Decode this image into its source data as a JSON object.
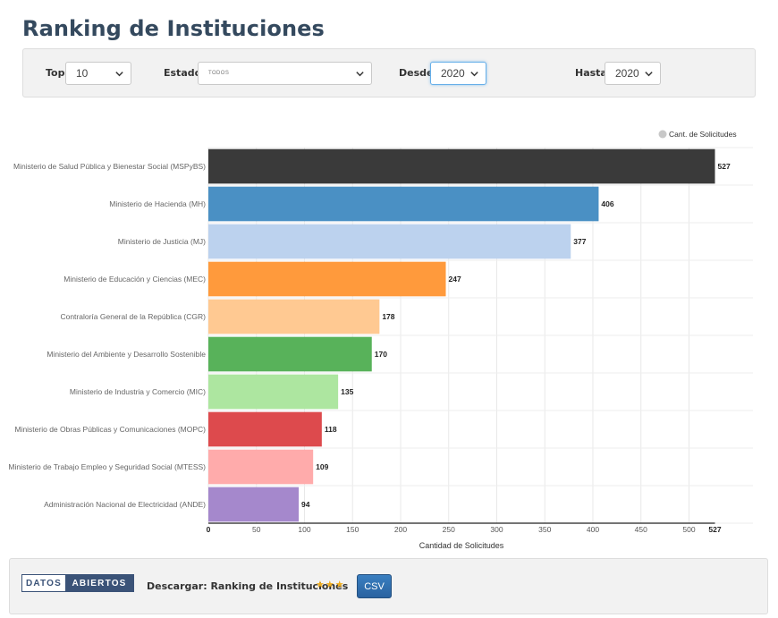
{
  "page": {
    "title": "Ranking de Instituciones"
  },
  "filters": {
    "top_label": "Top",
    "top_value": "10",
    "estado_label": "Estado",
    "estado_value": "TODOS",
    "desde_label": "Desde",
    "desde_value": "2020",
    "hasta_label": "Hasta",
    "hasta_value": "2020"
  },
  "chart_data": {
    "type": "bar",
    "orientation": "horizontal",
    "categories": [
      "Ministerio de Salud Pública y Bienestar Social (MSPyBS)",
      "Ministerio de Hacienda (MH)",
      "Ministerio de Justicia (MJ)",
      "Ministerio de Educación y Ciencias (MEC)",
      "Contraloría General de la República (CGR)",
      "Ministerio del Ambiente y Desarrollo Sostenible",
      "Ministerio de Industria y Comercio (MIC)",
      "Ministerio de Obras Públicas y Comunicaciones (MOPC)",
      "Ministerio de Trabajo Empleo y Seguridad Social (MTESS)",
      "Administración Nacional de Electricidad (ANDE)"
    ],
    "series": [
      {
        "name": "Cant. de Solicitudes",
        "values": [
          527,
          406,
          377,
          247,
          178,
          170,
          135,
          118,
          109,
          94
        ]
      }
    ],
    "colors": [
      "#3a3a3a",
      "#4a90c4",
      "#bcd2ee",
      "#ff9a3c",
      "#ffc992",
      "#58b25a",
      "#ade6a0",
      "#dd4a4d",
      "#ffabab",
      "#a588cc"
    ],
    "xlabel": "Cantidad de Solicitudes",
    "xlim": [
      0,
      527
    ],
    "xticks": [
      0,
      50,
      100,
      150,
      200,
      250,
      300,
      350,
      400,
      450,
      500
    ],
    "xmax_label": "527",
    "legend_position": "top-right",
    "legend_color": "#c8c8c8",
    "grid": true
  },
  "footer": {
    "logo_left": "DATOS",
    "logo_right": "ABIERTOS",
    "download_label": "Descargar: Ranking de Instituciones",
    "stars": "★★★",
    "csv_button": "CSV"
  }
}
